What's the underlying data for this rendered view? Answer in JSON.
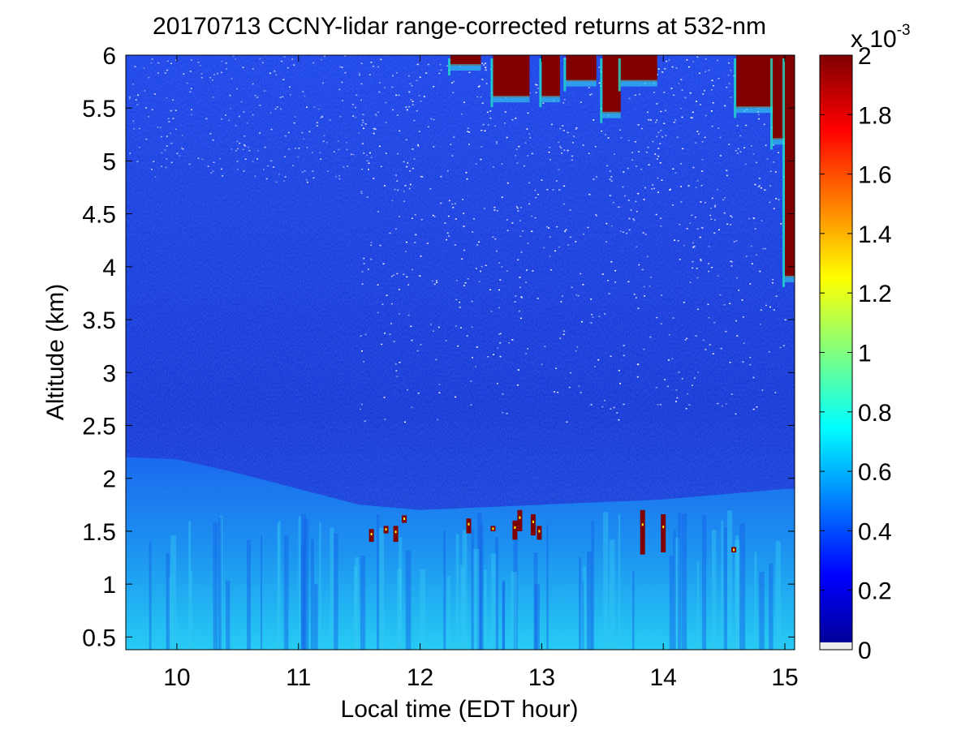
{
  "chart_data": {
    "type": "heatmap",
    "title": "20170713 CCNY-lidar range-corrected returns at 532-nm",
    "xlabel": "Local time (EDT hour)",
    "ylabel": "Altitude (km)",
    "xlim": [
      9.58,
      15.08
    ],
    "ylim": [
      0.38,
      6.0
    ],
    "xticks": [
      10,
      11,
      12,
      13,
      14,
      15
    ],
    "xtick_labels": [
      "10",
      "11",
      "12",
      "13",
      "14",
      "15"
    ],
    "yticks": [
      0.5,
      1,
      1.5,
      2,
      2.5,
      3,
      3.5,
      4,
      4.5,
      5,
      5.5,
      6
    ],
    "ytick_labels": [
      "0.5",
      "1",
      "1.5",
      "2",
      "2.5",
      "3",
      "3.5",
      "4",
      "4.5",
      "5",
      "5.5",
      "6"
    ],
    "colorbar": {
      "range": [
        0,
        2
      ],
      "ticks": [
        0,
        0.2,
        0.4,
        0.6,
        0.8,
        1,
        1.2,
        1.4,
        1.6,
        1.8,
        2
      ],
      "tick_labels": [
        "0",
        "0.2",
        "0.4",
        "0.6",
        "0.8",
        "1",
        "1.2",
        "1.4",
        "1.6",
        "1.8",
        "2"
      ],
      "multiplier_base": "x 10",
      "multiplier_exponent": "-3",
      "colormap": "jet"
    },
    "features": {
      "boundary_layer_top_km": [
        {
          "time": 9.6,
          "alt": 2.2
        },
        {
          "time": 10.0,
          "alt": 2.18
        },
        {
          "time": 10.5,
          "alt": 2.05
        },
        {
          "time": 11.0,
          "alt": 1.9
        },
        {
          "time": 11.5,
          "alt": 1.75
        },
        {
          "time": 12.0,
          "alt": 1.7
        },
        {
          "time": 13.0,
          "alt": 1.75
        },
        {
          "time": 14.0,
          "alt": 1.8
        },
        {
          "time": 15.0,
          "alt": 1.9
        }
      ],
      "low_clouds": [
        {
          "time": 11.6,
          "alt_top": 1.52,
          "alt_bottom": 1.4
        },
        {
          "time": 11.72,
          "alt_top": 1.55,
          "alt_bottom": 1.48
        },
        {
          "time": 11.8,
          "alt_top": 1.55,
          "alt_bottom": 1.4
        },
        {
          "time": 11.87,
          "alt_top": 1.65,
          "alt_bottom": 1.58
        },
        {
          "time": 12.4,
          "alt_top": 1.62,
          "alt_bottom": 1.48
        },
        {
          "time": 12.6,
          "alt_top": 1.55,
          "alt_bottom": 1.5
        },
        {
          "time": 12.78,
          "alt_top": 1.6,
          "alt_bottom": 1.42
        },
        {
          "time": 12.82,
          "alt_top": 1.7,
          "alt_bottom": 1.5
        },
        {
          "time": 12.93,
          "alt_top": 1.66,
          "alt_bottom": 1.46
        },
        {
          "time": 12.98,
          "alt_top": 1.55,
          "alt_bottom": 1.42
        },
        {
          "time": 13.83,
          "alt_top": 1.7,
          "alt_bottom": 1.28
        },
        {
          "time": 14.0,
          "alt_top": 1.66,
          "alt_bottom": 1.3
        },
        {
          "time": 14.58,
          "alt_top": 1.35,
          "alt_bottom": 1.3
        }
      ],
      "high_clouds": [
        {
          "time_start": 12.25,
          "time_end": 12.5,
          "alt_bottom": 5.9
        },
        {
          "time_start": 12.6,
          "time_end": 12.9,
          "alt_bottom": 5.6
        },
        {
          "time_start": 13.0,
          "time_end": 13.15,
          "alt_bottom": 5.6
        },
        {
          "time_start": 13.2,
          "time_end": 13.45,
          "alt_bottom": 5.75
        },
        {
          "time_start": 13.5,
          "time_end": 13.65,
          "alt_bottom": 5.45
        },
        {
          "time_start": 13.65,
          "time_end": 13.95,
          "alt_bottom": 5.75
        },
        {
          "time_start": 14.6,
          "time_end": 14.9,
          "alt_bottom": 5.5
        },
        {
          "time_start": 14.9,
          "time_end": 15.05,
          "alt_bottom": 5.2
        },
        {
          "time_start": 15.0,
          "time_end": 15.08,
          "alt_bottom": 3.9
        }
      ]
    }
  }
}
